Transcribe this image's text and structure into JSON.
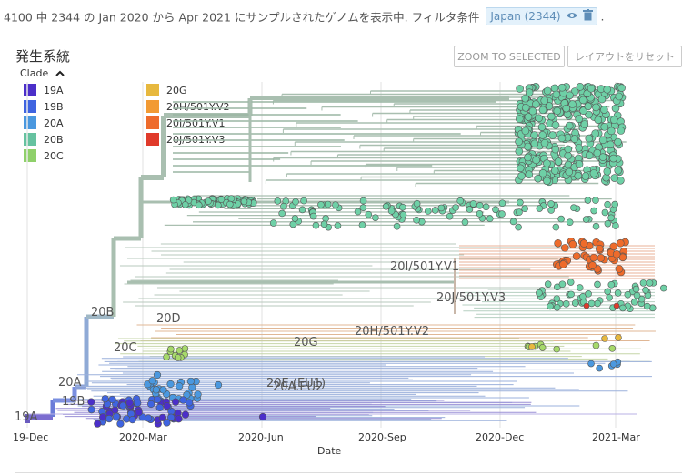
{
  "header": {
    "summary_text": "4100 中 2344 の Jan 2020 から Apr 2021 にサンプルされたゲノムを表示中. フィルタ条件",
    "filter_label": "Japan (2344)",
    "trailing": "."
  },
  "panel": {
    "title": "発生系統",
    "zoom_button": "ZOOM TO SELECTED",
    "reset_button": "レイアウトをリセット"
  },
  "legend": {
    "title": "Clade",
    "items": [
      {
        "label": "19A",
        "color": "#4b2fc9"
      },
      {
        "label": "19B",
        "color": "#3f64e0"
      },
      {
        "label": "20A",
        "color": "#4a98df"
      },
      {
        "label": "20B",
        "color": "#66c2a0"
      },
      {
        "label": "20C",
        "color": "#8fd06a"
      },
      {
        "label": "20G",
        "color": "#e7b83e"
      },
      {
        "label": "20H/501Y.V2",
        "color": "#f29a33"
      },
      {
        "label": "20I/501Y.V1",
        "color": "#ee6b2b"
      },
      {
        "label": "20J/501Y.V3",
        "color": "#e03a2a"
      }
    ]
  },
  "tree": {
    "axis_title": "Date",
    "ticks": [
      "19-Dec",
      "2020-Mar",
      "2020-Jun",
      "2020-Sep",
      "2020-Dec",
      "2021-Mar"
    ],
    "clade_labels": [
      "19A",
      "19B",
      "20A",
      "20B",
      "20C",
      "20D",
      "20G",
      "20H/501Y.V2",
      "20I/501Y.V1",
      "20J/501Y.V3",
      "20E (EU1)",
      "20A.EU2"
    ]
  },
  "icons": {
    "visibility": "eye-icon",
    "remove": "trash-icon",
    "legend_toggle": "chevron-up-icon"
  }
}
